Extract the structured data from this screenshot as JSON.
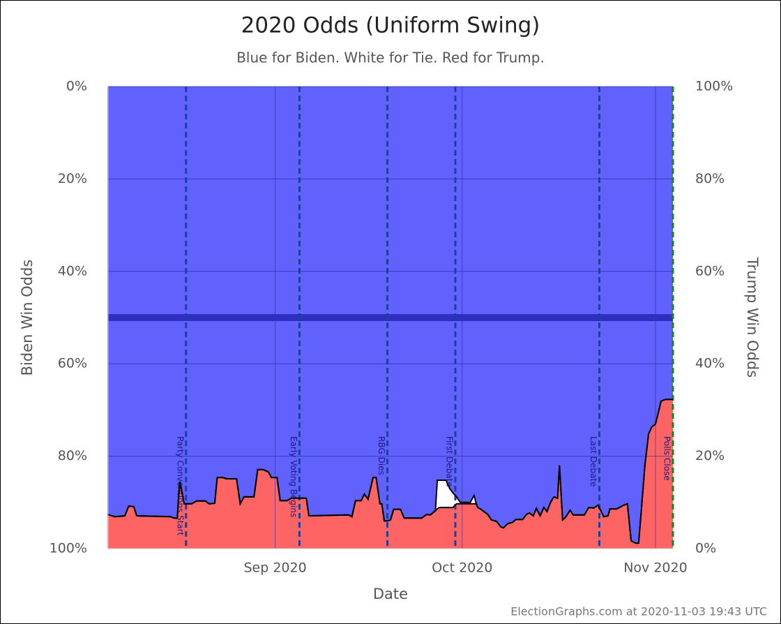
{
  "chart_data": {
    "type": "odds-area",
    "title": "2020 Odds (Uniform Swing)",
    "subtitle": "Blue for Biden. White for Tie. Red for Trump.",
    "x_label": "Date",
    "y_label": "Biden Win Odds",
    "y2_label": "Trump Win Odds",
    "footer": "ElectionGraphs.com at 2020-11-03 19:43 UTC",
    "xlim": [
      4.2,
      94.8
    ],
    "xticks": [
      {
        "value": 31,
        "label": "Sep 2020"
      },
      {
        "value": 61,
        "label": "Oct 2020"
      },
      {
        "value": 92,
        "label": "Nov 2020"
      }
    ],
    "ylim": [
      100,
      0
    ],
    "yticks": [
      {
        "value": 0,
        "label": "0%"
      },
      {
        "value": 20,
        "label": "20%"
      },
      {
        "value": 40,
        "label": "40%"
      },
      {
        "value": 60,
        "label": "60%"
      },
      {
        "value": 80,
        "label": "80%"
      },
      {
        "value": 100,
        "label": "100%"
      }
    ],
    "y2lim": [
      0,
      100
    ],
    "y2ticks": [
      {
        "value": 100,
        "label": "100%"
      },
      {
        "value": 80,
        "label": "80%"
      },
      {
        "value": 60,
        "label": "60%"
      },
      {
        "value": 40,
        "label": "40%"
      },
      {
        "value": 20,
        "label": "20%"
      },
      {
        "value": 0,
        "label": "0%"
      }
    ],
    "grid": true,
    "midline": 50,
    "x": [
      4.1,
      5.3,
      6.9,
      7.5,
      8.3,
      8.8,
      14.2,
      14.8,
      15.3,
      15.7,
      16.4,
      17.6,
      18.4,
      19.8,
      20.4,
      21.3,
      21.7,
      22.6,
      23.2,
      24.8,
      25.4,
      26.0,
      27.6,
      28.2,
      29.1,
      29.9,
      30.4,
      31.3,
      31.8,
      32.9,
      33.6,
      36.0,
      36.4,
      42.8,
      43.3,
      43.9,
      44.8,
      45.3,
      45.9,
      46.7,
      47.2,
      47.8,
      48.1,
      48.5,
      49.0,
      49.5,
      50.0,
      51.1,
      51.7,
      54.5,
      55.3,
      55.9,
      56.7,
      57.0,
      57.3,
      58.4,
      59.0,
      59.5,
      60.1,
      60.7,
      61.8,
      62.3,
      62.9,
      63.2,
      63.5,
      64.0,
      65.1,
      65.7,
      66.5,
      67.2,
      67.6,
      68.3,
      69.1,
      69.6,
      70.7,
      71.3,
      71.8,
      72.4,
      72.9,
      73.5,
      74.1,
      74.6,
      75.2,
      75.7,
      76.3,
      76.6,
      77.1,
      77.6,
      78.3,
      78.8,
      80.6,
      81.3,
      82.1,
      82.8,
      83.2,
      83.7,
      84.4,
      84.7,
      85.8,
      86.9,
      87.5,
      88.1,
      88.8,
      89.3,
      89.7,
      90.3,
      90.9,
      91.4,
      92.0,
      92.5,
      92.9,
      93.6,
      94.8
    ],
    "series": [
      {
        "name": "Biden",
        "color": "#6161fd",
        "values": [
          92.6,
          93.1,
          92.9,
          90.8,
          90.9,
          92.9,
          93.1,
          93.4,
          93.4,
          85.5,
          90.3,
          90.3,
          89.7,
          89.7,
          90.3,
          90.2,
          84.6,
          84.6,
          84.9,
          84.9,
          90.3,
          88.8,
          88.8,
          82.9,
          82.9,
          83.4,
          84.6,
          84.6,
          89.6,
          89.6,
          89.1,
          89.1,
          92.9,
          92.7,
          93.1,
          89.6,
          89.6,
          88.2,
          89.3,
          84.6,
          84.6,
          90.3,
          90.3,
          94.0,
          94.0,
          93.8,
          91.5,
          91.5,
          93.4,
          93.4,
          92.6,
          92.7,
          91.8,
          85.2,
          85.2,
          85.2,
          87.0,
          87.9,
          88.8,
          90.0,
          90.0,
          90.0,
          88.5,
          90.0,
          91.1,
          91.5,
          92.6,
          93.8,
          94.1,
          95.3,
          95.5,
          94.6,
          94.3,
          93.7,
          93.7,
          92.6,
          92.3,
          92.9,
          91.3,
          92.9,
          91.1,
          92.0,
          89.9,
          88.8,
          89.1,
          82.0,
          93.8,
          93.2,
          91.7,
          92.7,
          92.7,
          91.1,
          91.2,
          90.6,
          91.7,
          93.1,
          92.9,
          91.4,
          91.4,
          90.6,
          90.3,
          98.3,
          98.8,
          98.8,
          92.3,
          82.0,
          75.2,
          73.7,
          73.0,
          70.4,
          68.1,
          67.7,
          67.7
        ]
      },
      {
        "name": "Trump",
        "color": "#ff6464",
        "axis": "y2",
        "values": [
          7.4,
          6.9,
          7.1,
          9.2,
          9.1,
          7.1,
          6.9,
          6.6,
          6.6,
          14.5,
          9.7,
          9.7,
          10.3,
          10.3,
          9.7,
          9.8,
          15.4,
          15.4,
          15.1,
          15.1,
          9.7,
          11.2,
          11.2,
          17.1,
          17.1,
          16.6,
          15.4,
          15.4,
          10.4,
          10.4,
          10.9,
          10.9,
          7.1,
          7.3,
          6.9,
          10.4,
          10.4,
          11.8,
          10.7,
          15.4,
          15.4,
          9.7,
          9.7,
          6.0,
          6.0,
          6.2,
          8.5,
          8.5,
          6.6,
          6.6,
          7.4,
          7.3,
          8.2,
          8.6,
          8.9,
          8.9,
          8.9,
          8.9,
          9.7,
          9.7,
          9.7,
          9.7,
          9.7,
          9.7,
          8.9,
          8.5,
          7.4,
          6.2,
          5.9,
          4.7,
          4.5,
          5.4,
          5.7,
          6.3,
          6.3,
          7.4,
          7.7,
          7.1,
          8.7,
          7.1,
          8.9,
          8.0,
          10.1,
          11.2,
          10.9,
          18.0,
          6.2,
          6.8,
          8.3,
          7.3,
          7.3,
          8.9,
          8.8,
          9.4,
          8.3,
          6.9,
          7.1,
          8.6,
          8.6,
          9.4,
          9.7,
          1.7,
          1.2,
          1.2,
          7.7,
          18.0,
          24.8,
          26.3,
          27.0,
          29.6,
          31.9,
          32.3,
          32.3
        ]
      }
    ],
    "events": [
      {
        "x": 16.7,
        "label": "Party Conventions Start"
      },
      {
        "x": 34.9,
        "label": "Early Voting Begins"
      },
      {
        "x": 49.0,
        "label": "RBG Dies"
      },
      {
        "x": 59.9,
        "label": "First Debate"
      },
      {
        "x": 83.0,
        "label": "Last Debate"
      },
      {
        "x": 94.8,
        "label": "Polls Close",
        "color": "#118811"
      }
    ]
  }
}
